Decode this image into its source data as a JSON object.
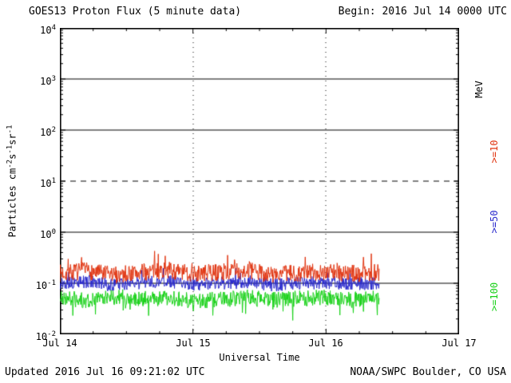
{
  "header": {
    "title": "GOES13 Proton Flux (5 minute data)",
    "begin_label": "Begin: 2016 Jul 14 0000 UTC"
  },
  "footer": {
    "updated": "Updated 2016 Jul 16 09:21:02 UTC",
    "source": "NOAA/SWPC Boulder, CO USA"
  },
  "chart_data": {
    "type": "line",
    "title": "GOES13 Proton Flux (5 minute data)",
    "xlabel": "Universal Time",
    "ylabel": "Particles cm-2 s-1 sr-1",
    "ylabel_parts": {
      "p1": "Particles  cm",
      "s1": "-2",
      "p2": "s",
      "s2": "-1",
      "p3": "sr",
      "s3": "-1"
    },
    "x_ticks": [
      "Jul 14",
      "Jul 15",
      "Jul 16",
      "Jul 17"
    ],
    "x_range_days": 3,
    "y_tick_base": "10",
    "y_ticks": [
      {
        "exp": "4"
      },
      {
        "exp": "3"
      },
      {
        "exp": "2"
      },
      {
        "exp": "1"
      },
      {
        "exp": "0"
      },
      {
        "exp": "-1"
      },
      {
        "exp": "-2"
      }
    ],
    "ylim_log10": [
      -2,
      4
    ],
    "grid": {
      "solid_lines_log10": [
        3,
        2,
        0,
        -1
      ],
      "dashed_lines_log10": [
        1
      ],
      "vertical_dotted_at_days": [
        1,
        2
      ]
    },
    "legend_unit": "MeV",
    "sample_interval_minutes": 5,
    "series": [
      {
        "name": "Proton flux >=10 MeV",
        "label": ">=10",
        "color": "#e0330f",
        "seed": 7,
        "start_day": 0,
        "end_day": 2.4,
        "samples_log10": [
          -0.8,
          -0.76,
          -0.84,
          -0.79,
          -0.74,
          -0.82,
          -0.78,
          -0.75,
          -0.83,
          -0.8,
          -0.77,
          -0.81,
          -0.79
        ],
        "noise_log10": 0.17,
        "spike_prob": 0.04,
        "spike_amp": 0.3
      },
      {
        "name": "Proton flux >=50 MeV",
        "label": ">=50",
        "color": "#2828cc",
        "seed": 13,
        "start_day": 0,
        "end_day": 2.4,
        "samples_log10": [
          -1.0,
          -0.97,
          -1.04,
          -0.99,
          -0.96,
          -1.02,
          -1.0,
          -0.97,
          -1.03,
          -1.0,
          -0.98,
          -1.01,
          -1.0
        ],
        "noise_log10": 0.13,
        "spike_prob": 0.03,
        "spike_amp": 0.22
      },
      {
        "name": "Proton flux >=100 MeV",
        "label": ">=100",
        "color": "#19d119",
        "seed": 21,
        "start_day": 0,
        "end_day": 2.4,
        "samples_log10": [
          -1.28,
          -1.33,
          -1.26,
          -1.31,
          -1.29,
          -1.35,
          -1.31,
          -1.28,
          -1.33,
          -1.3,
          -1.27,
          -1.32,
          -1.3
        ],
        "noise_log10": 0.16,
        "spike_prob": 0.05,
        "spike_amp": -0.38
      }
    ]
  }
}
